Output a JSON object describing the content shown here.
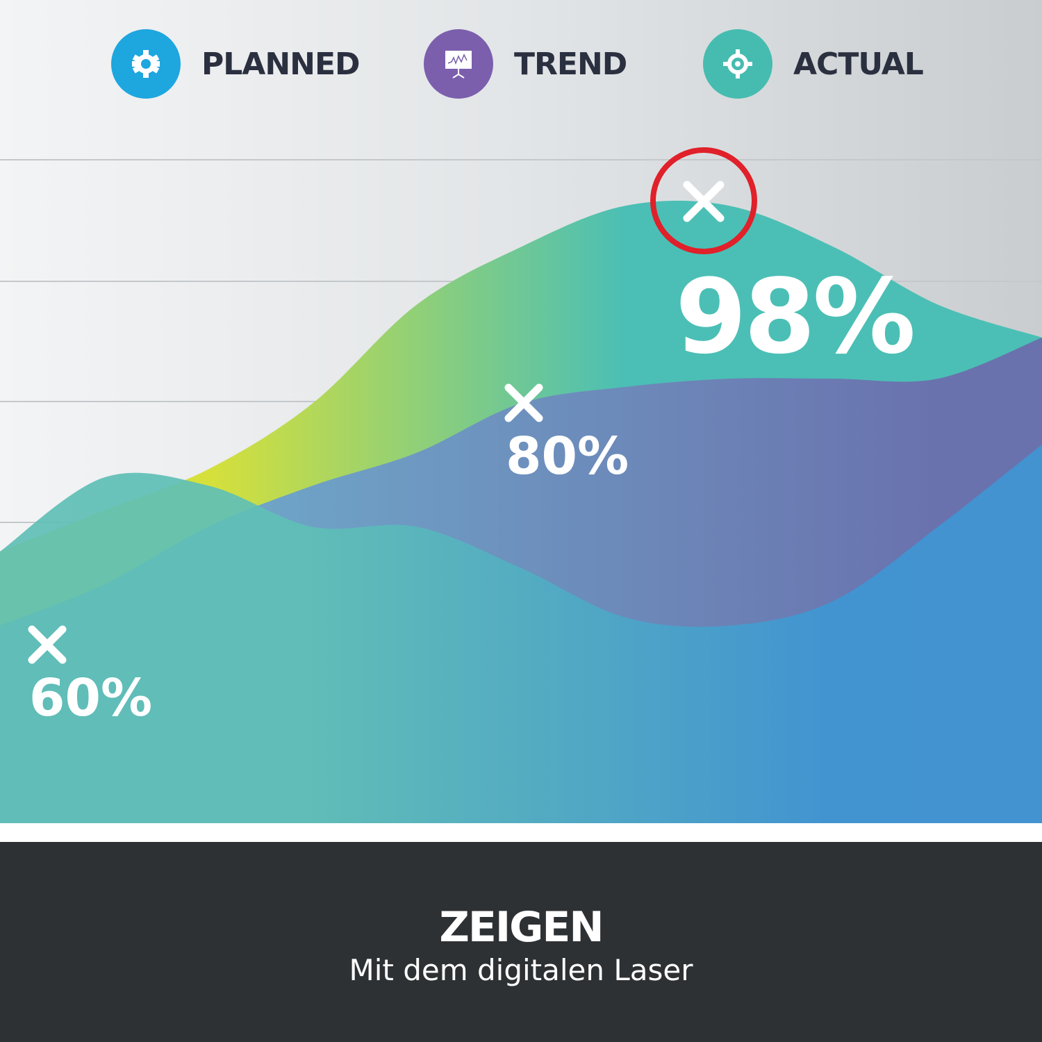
{
  "legend": [
    {
      "label": "PLANNED",
      "icon": "gear-icon",
      "color": "#1ea6df"
    },
    {
      "label": "TREND",
      "icon": "presentation-chart-icon",
      "color": "#7b5fad"
    },
    {
      "label": "ACTUAL",
      "icon": "target-icon",
      "color": "#46bcb0"
    }
  ],
  "chart_data": {
    "type": "area",
    "x": [
      0,
      1,
      2,
      3,
      4,
      5,
      6,
      7,
      8,
      9,
      10
    ],
    "grid": true,
    "series": [
      {
        "values": [
          33,
          38,
          43,
          51,
          63,
          70,
          75,
          75,
          70,
          63,
          59
        ],
        "color_start": "#d6e03a",
        "color_end": "#4bbfb5"
      },
      {
        "values": [
          24,
          29,
          36,
          41,
          45,
          51,
          53,
          54,
          54,
          54,
          59
        ],
        "color_start": "#6fa8c9",
        "color_end": "#6a72ae"
      },
      {
        "values": [
          33,
          42,
          41,
          36,
          36,
          31,
          25,
          24,
          27,
          36,
          46
        ],
        "color_start": "#5fbfb6",
        "color_end": "#3e96d3"
      }
    ],
    "annotations": [
      {
        "label": "60%",
        "marker": "x"
      },
      {
        "label": "80%",
        "marker": "x"
      },
      {
        "label": "98%",
        "marker": "x",
        "highlight_color": "#e0202a"
      }
    ]
  },
  "banner": {
    "title": "ZEIGEN",
    "subtitle": "Mit dem digitalen Laser"
  }
}
